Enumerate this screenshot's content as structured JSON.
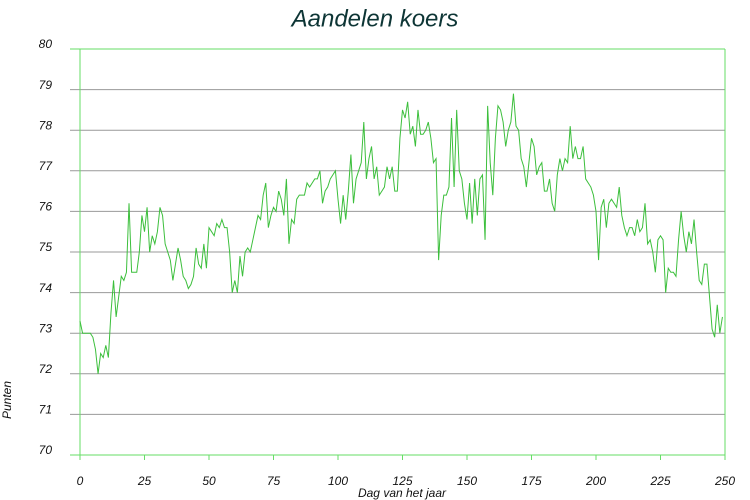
{
  "chart_data": {
    "type": "line",
    "title": "Aandelen koers",
    "x_label": "Dag van het jaar",
    "y_label": "Punten",
    "color": "#3cbf3c",
    "grid": true,
    "xlim": [
      0,
      250
    ],
    "xticks": [
      0,
      25,
      50,
      75,
      100,
      125,
      150,
      175,
      200,
      225,
      250
    ],
    "ylim": [
      70,
      80
    ],
    "yticks": [
      70,
      71,
      72,
      73,
      74,
      75,
      76,
      77,
      78,
      79,
      80
    ],
    "x": [
      0,
      1,
      2,
      3,
      4,
      5,
      6,
      7,
      8,
      9,
      10,
      11,
      12,
      13,
      14,
      15,
      16,
      17,
      18,
      19,
      20,
      21,
      22,
      23,
      24,
      25,
      26,
      27,
      28,
      29,
      30,
      31,
      32,
      33,
      34,
      35,
      36,
      37,
      38,
      39,
      40,
      41,
      42,
      43,
      44,
      45,
      46,
      47,
      48,
      49,
      50,
      51,
      52,
      53,
      54,
      55,
      56,
      57,
      58,
      59,
      60,
      61,
      62,
      63,
      64,
      65,
      66,
      67,
      68,
      69,
      70,
      71,
      72,
      73,
      74,
      75,
      76,
      77,
      78,
      79,
      80,
      81,
      82,
      83,
      84,
      85,
      86,
      87,
      88,
      89,
      90,
      91,
      92,
      93,
      94,
      95,
      96,
      97,
      98,
      99,
      100,
      101,
      102,
      103,
      104,
      105,
      106,
      107,
      108,
      109,
      110,
      111,
      112,
      113,
      114,
      115,
      116,
      117,
      118,
      119,
      120,
      121,
      122,
      123,
      124,
      125,
      126,
      127,
      128,
      129,
      130,
      131,
      132,
      133,
      134,
      135,
      136,
      137,
      138,
      139,
      140,
      141,
      142,
      143,
      144,
      145,
      146,
      147,
      148,
      149,
      150,
      151,
      152,
      153,
      154,
      155,
      156,
      157,
      158,
      159,
      160,
      161,
      162,
      163,
      164,
      165,
      166,
      167,
      168,
      169,
      170,
      171,
      172,
      173,
      174,
      175,
      176,
      177,
      178,
      179,
      180,
      181,
      182,
      183,
      184,
      185,
      186,
      187,
      188,
      189,
      190,
      191,
      192,
      193,
      194,
      195,
      196,
      197,
      198,
      199,
      200,
      201,
      202,
      203,
      204,
      205,
      206,
      207,
      208,
      209,
      210,
      211,
      212,
      213,
      214,
      215,
      216,
      217,
      218,
      219,
      220,
      221,
      222,
      223,
      224,
      225,
      226,
      227,
      228,
      229,
      230,
      231,
      232,
      233,
      234,
      235,
      236,
      237,
      238,
      239,
      240,
      241,
      242,
      243,
      244,
      245,
      246,
      247,
      248,
      249
    ],
    "values": [
      73.3,
      73.0,
      73.0,
      73.0,
      73.0,
      72.9,
      72.6,
      72.0,
      72.5,
      72.4,
      72.7,
      72.4,
      73.5,
      74.3,
      73.4,
      73.9,
      74.4,
      74.3,
      74.5,
      76.2,
      74.5,
      74.5,
      74.5,
      75.0,
      75.9,
      75.5,
      76.1,
      75.0,
      75.4,
      75.2,
      75.5,
      76.1,
      75.9,
      75.2,
      75.0,
      74.8,
      74.3,
      74.7,
      75.1,
      74.8,
      74.4,
      74.3,
      74.1,
      74.2,
      74.4,
      75.1,
      74.7,
      74.6,
      75.2,
      74.6,
      75.6,
      75.5,
      75.4,
      75.7,
      75.6,
      75.8,
      75.6,
      75.6,
      75.0,
      74.0,
      74.3,
      74.0,
      74.9,
      74.4,
      75.0,
      75.1,
      75.0,
      75.3,
      75.6,
      75.9,
      75.8,
      76.4,
      76.7,
      75.6,
      75.9,
      76.1,
      76.0,
      76.5,
      76.3,
      75.9,
      76.8,
      75.2,
      75.8,
      75.7,
      76.3,
      76.4,
      76.4,
      76.4,
      76.7,
      76.6,
      76.7,
      76.8,
      76.8,
      77.0,
      76.2,
      76.5,
      76.6,
      76.8,
      76.9,
      77.0,
      76.3,
      75.7,
      76.4,
      75.8,
      76.5,
      77.4,
      76.2,
      76.8,
      77.0,
      77.2,
      78.2,
      76.8,
      77.3,
      77.6,
      76.8,
      77.1,
      76.4,
      76.5,
      76.6,
      77.1,
      76.8,
      77.1,
      76.5,
      76.5,
      77.8,
      78.5,
      78.3,
      78.7,
      77.9,
      78.1,
      77.6,
      78.5,
      77.9,
      77.9,
      78.0,
      78.2,
      77.8,
      77.2,
      77.3,
      74.8,
      75.9,
      76.4,
      76.4,
      76.6,
      78.3,
      76.6,
      78.5,
      77.0,
      76.8,
      76.2,
      75.8,
      76.7,
      75.7,
      76.8,
      75.9,
      76.8,
      76.9,
      75.3,
      78.6,
      77.2,
      76.4,
      77.8,
      78.6,
      78.5,
      78.2,
      77.6,
      78.0,
      78.2,
      78.9,
      78.1,
      78.0,
      77.3,
      77.1,
      76.6,
      77.2,
      77.8,
      77.6,
      76.9,
      77.1,
      77.2,
      76.5,
      76.5,
      76.8,
      76.2,
      76.0,
      76.9,
      77.3,
      77.0,
      77.3,
      77.2,
      78.1,
      77.3,
      77.6,
      77.3,
      77.3,
      77.6,
      76.8,
      76.7,
      76.6,
      76.4,
      76.0,
      74.8,
      76.1,
      76.3,
      75.6,
      76.2,
      76.3,
      76.2,
      76.1,
      76.6,
      75.9,
      75.6,
      75.4,
      75.6,
      75.6,
      75.4,
      75.8,
      75.5,
      75.6,
      76.2,
      75.2,
      75.3,
      75.0,
      74.5,
      75.3,
      75.4,
      75.3,
      74.0,
      74.6,
      74.5,
      74.5,
      74.4,
      75.3,
      76.0,
      75.4,
      75.0,
      75.5,
      75.2,
      75.8,
      75.0,
      74.3,
      74.2,
      74.7,
      74.7,
      73.9,
      73.1,
      72.9,
      73.7,
      73.0,
      73.4
    ]
  }
}
